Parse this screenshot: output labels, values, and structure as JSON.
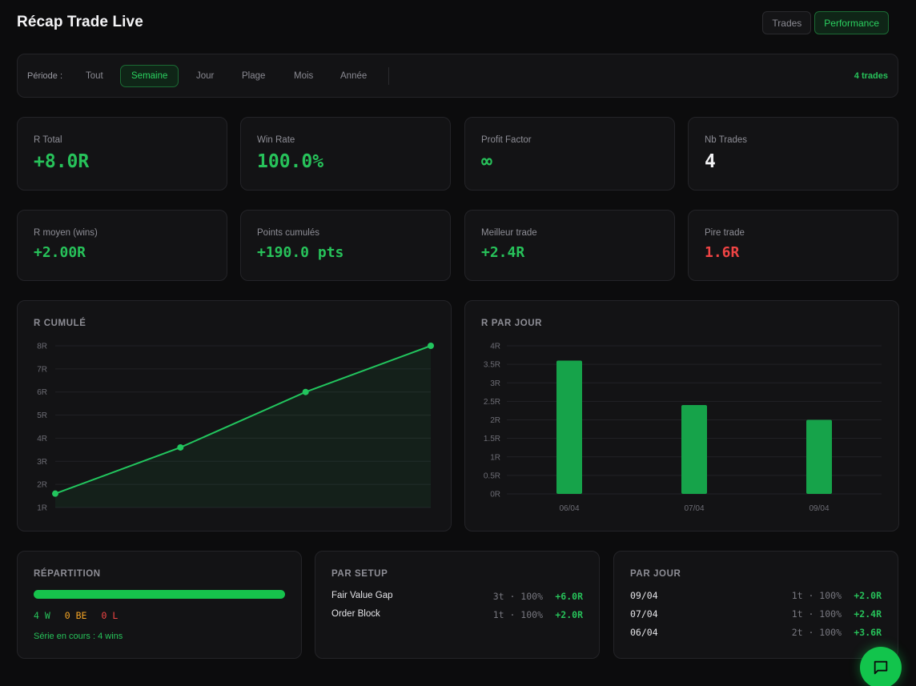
{
  "header": {
    "title": "Récap Trade Live",
    "tabs": [
      {
        "label": "Trades",
        "active": false
      },
      {
        "label": "Performance",
        "active": true
      }
    ]
  },
  "period": {
    "label": "Période :",
    "options": [
      "Tout",
      "Semaine",
      "Jour",
      "Plage",
      "Mois",
      "Année"
    ],
    "selected": "Semaine",
    "trade_count": "4 trades"
  },
  "stats": [
    {
      "label": "R Total",
      "value": "+8.0R",
      "color": "#27c25a"
    },
    {
      "label": "Win Rate",
      "value": "100.0%",
      "color": "#27c25a"
    },
    {
      "label": "Profit Factor",
      "value": "∞",
      "color": "#27c25a"
    },
    {
      "label": "Nb Trades",
      "value": "4",
      "color": "#f2f2f4"
    },
    {
      "label": "R moyen (wins)",
      "value": "+2.00R",
      "color": "#27c25a"
    },
    {
      "label": "Points cumulés",
      "value": "+190.0 pts",
      "color": "#27c25a"
    },
    {
      "label": "Meilleur trade",
      "value": "+2.4R",
      "color": "#27c25a"
    },
    {
      "label": "Pire trade",
      "value": "1.6R",
      "color": "#ef4444"
    }
  ],
  "charts": {
    "cumulative_title": "R CUMULÉ",
    "daily_title": "R PAR JOUR"
  },
  "chart_data": [
    {
      "type": "area",
      "title": "R CUMULÉ",
      "x": [
        1,
        2,
        3,
        4
      ],
      "values": [
        1.6,
        3.6,
        6.0,
        8.0
      ],
      "ylim": [
        1,
        8
      ],
      "yticks": [
        "1R",
        "2R",
        "3R",
        "4R",
        "5R",
        "6R",
        "7R",
        "8R"
      ],
      "grid": true,
      "color": "#22c55e"
    },
    {
      "type": "bar",
      "title": "R PAR JOUR",
      "categories": [
        "06/04",
        "07/04",
        "09/04"
      ],
      "values": [
        3.6,
        2.4,
        2.0
      ],
      "ylim": [
        0,
        4
      ],
      "yticks": [
        "0R",
        "0.5R",
        "1R",
        "1.5R",
        "2R",
        "2.5R",
        "3R",
        "3.5R",
        "4R"
      ],
      "grid": true,
      "color": "#16a34a"
    }
  ],
  "repartition": {
    "title": "RÉPARTITION",
    "wins": "4 W",
    "be": "0 BE",
    "losses": "0 L",
    "streak": "Série en cours : 4 wins"
  },
  "par_setup": {
    "title": "PAR SETUP",
    "rows": [
      {
        "name": "Fair Value Gap",
        "meta": "3t · 100%",
        "r": "+6.0R"
      },
      {
        "name": "Order Block",
        "meta": "1t · 100%",
        "r": "+2.0R"
      }
    ]
  },
  "par_jour": {
    "title": "PAR JOUR",
    "rows": [
      {
        "name": "09/04",
        "meta": "1t · 100%",
        "r": "+2.0R"
      },
      {
        "name": "07/04",
        "meta": "1t · 100%",
        "r": "+2.4R"
      },
      {
        "name": "06/04",
        "meta": "2t · 100%",
        "r": "+3.6R"
      }
    ]
  },
  "fab": {
    "icon": "chat-bubble-icon",
    "color": "#12c44c"
  }
}
